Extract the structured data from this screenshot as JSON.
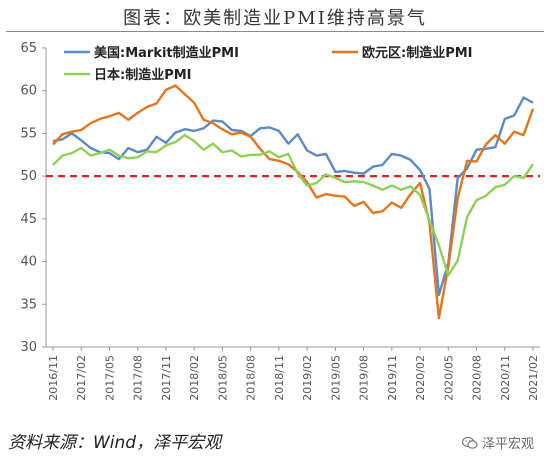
{
  "title": "图表：欧美制造业PMI维持高景气",
  "source_note": "资料来源：Wind，泽平宏观",
  "watermark": "泽平宏观",
  "watermark_icon": "wechat-icon",
  "chart_data": {
    "type": "line",
    "ylim": [
      30,
      65
    ],
    "yticks": [
      30,
      35,
      40,
      45,
      50,
      55,
      60,
      65
    ],
    "xticks": [
      "2016/11",
      "2017/02",
      "2017/05",
      "2017/08",
      "2017/11",
      "2018/02",
      "2018/05",
      "2018/08",
      "2018/11",
      "2019/02",
      "2019/05",
      "2019/08",
      "2019/11",
      "2020/02",
      "2020/05",
      "2020/08",
      "2020/11",
      "2021/02"
    ],
    "reference_line": {
      "y": 50,
      "color": "#e02020",
      "style": "dashed"
    },
    "legend": [
      {
        "label": "美国:Markit制造业PMI",
        "color": "#5b8ac4"
      },
      {
        "label": "欧元区:制造业PMI",
        "color": "#e2761e"
      },
      {
        "label": "日本:制造业PMI",
        "color": "#8fcf58"
      }
    ],
    "x": [
      "2016/11",
      "2016/12",
      "2017/01",
      "2017/02",
      "2017/03",
      "2017/04",
      "2017/05",
      "2017/06",
      "2017/07",
      "2017/08",
      "2017/09",
      "2017/10",
      "2017/11",
      "2017/12",
      "2018/01",
      "2018/02",
      "2018/03",
      "2018/04",
      "2018/05",
      "2018/06",
      "2018/07",
      "2018/08",
      "2018/09",
      "2018/10",
      "2018/11",
      "2018/12",
      "2019/01",
      "2019/02",
      "2019/03",
      "2019/04",
      "2019/05",
      "2019/06",
      "2019/07",
      "2019/08",
      "2019/09",
      "2019/10",
      "2019/11",
      "2019/12",
      "2020/01",
      "2020/02",
      "2020/03",
      "2020/04",
      "2020/05",
      "2020/06",
      "2020/07",
      "2020/08",
      "2020/09",
      "2020/10",
      "2020/11",
      "2020/12",
      "2021/01",
      "2021/02"
    ],
    "series": [
      {
        "color": "#5b8ac4",
        "values": [
          54.1,
          54.3,
          55.0,
          54.2,
          53.3,
          52.8,
          52.7,
          52.0,
          53.3,
          52.8,
          53.1,
          54.6,
          53.9,
          55.1,
          55.5,
          55.3,
          55.6,
          56.5,
          56.4,
          55.4,
          55.3,
          54.7,
          55.6,
          55.7,
          55.3,
          53.8,
          54.9,
          53.0,
          52.4,
          52.6,
          50.5,
          50.6,
          50.4,
          50.3,
          51.1,
          51.3,
          52.6,
          52.4,
          51.9,
          50.7,
          48.5,
          36.1,
          39.8,
          49.8,
          50.9,
          53.1,
          53.2,
          53.4,
          56.7,
          57.1,
          59.2,
          58.6
        ]
      },
      {
        "color": "#e2761e",
        "values": [
          53.7,
          54.9,
          55.2,
          55.4,
          56.2,
          56.7,
          57.0,
          57.4,
          56.6,
          57.4,
          58.1,
          58.5,
          60.1,
          60.6,
          59.6,
          58.6,
          56.6,
          56.2,
          55.5,
          54.9,
          55.1,
          54.6,
          53.2,
          52.0,
          51.8,
          51.4,
          50.5,
          49.3,
          47.5,
          47.9,
          47.7,
          47.6,
          46.5,
          47.0,
          45.7,
          45.9,
          46.9,
          46.3,
          47.9,
          49.2,
          44.5,
          33.4,
          39.4,
          47.4,
          51.8,
          51.7,
          53.7,
          54.8,
          53.8,
          55.2,
          54.8,
          57.9
        ]
      },
      {
        "color": "#8fcf58",
        "values": [
          51.3,
          52.4,
          52.7,
          53.3,
          52.4,
          52.7,
          53.1,
          52.4,
          52.1,
          52.2,
          52.9,
          52.8,
          53.6,
          54.0,
          54.8,
          54.1,
          53.1,
          53.8,
          52.8,
          53.0,
          52.3,
          52.5,
          52.5,
          52.9,
          52.2,
          52.6,
          50.3,
          48.9,
          49.2,
          50.2,
          49.8,
          49.3,
          49.4,
          49.3,
          48.9,
          48.4,
          48.9,
          48.4,
          48.8,
          47.8,
          44.8,
          41.9,
          38.4,
          40.1,
          45.2,
          47.2,
          47.7,
          48.7,
          49.0,
          50.0,
          49.8,
          51.4
        ]
      }
    ]
  }
}
